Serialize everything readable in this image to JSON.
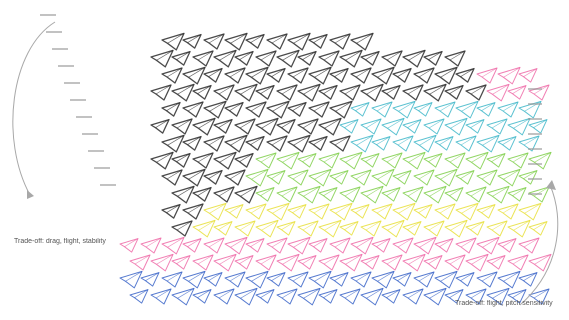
{
  "captions": {
    "left": "Trade-off: drag, flight, stability",
    "bottom_right": "Trade-off: flight, pitch sensitivity"
  },
  "palette": {
    "dark": "#2b2b2b",
    "cyan": "#3fb7c9",
    "green": "#7fcf4a",
    "yellow": "#e8df3a",
    "pink": "#ee6aa7",
    "blue": "#3a64c8",
    "arrow": "#9a9a9a"
  }
}
